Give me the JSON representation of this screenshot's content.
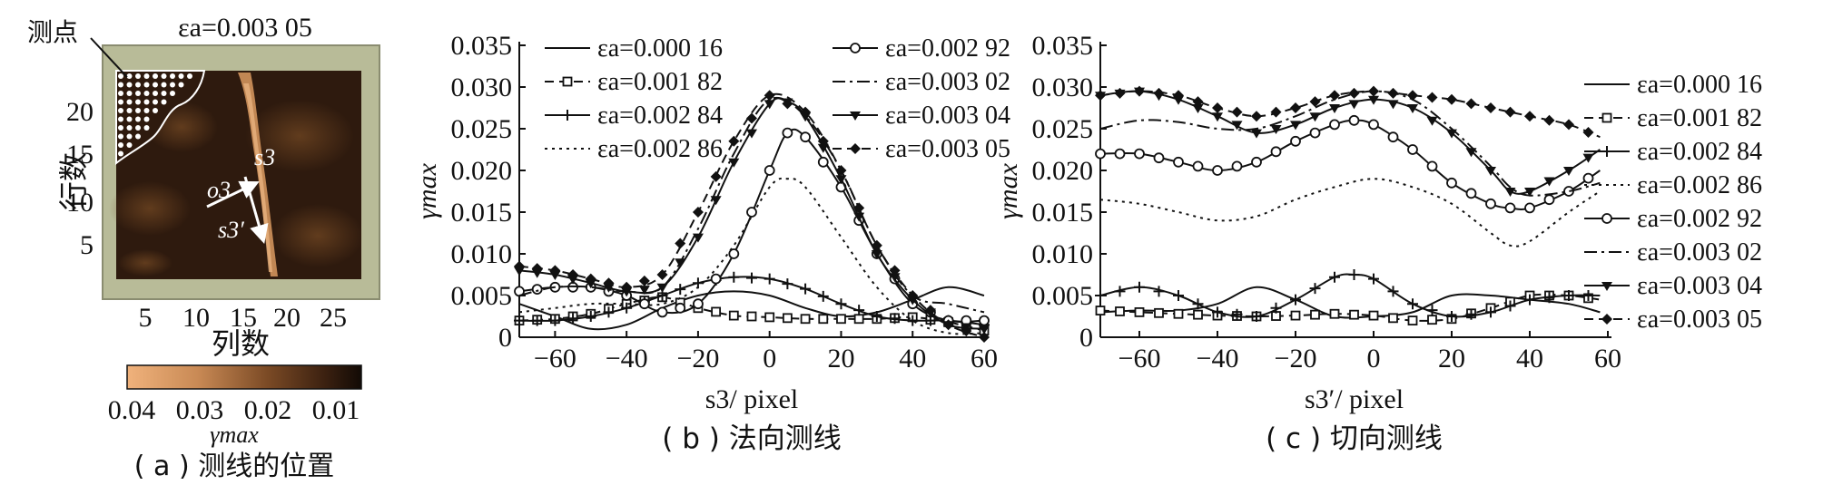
{
  "panel_a": {
    "title": "εa=0.003 05",
    "callout": "测点",
    "y_label": "行数",
    "x_label": "列数",
    "y_ticks": [
      "5",
      "10",
      "15",
      "20"
    ],
    "x_ticks": [
      "5",
      "10",
      "15",
      "20",
      "25"
    ],
    "o_label": "o3",
    "s_label": "s3",
    "sp_label": "s3′",
    "colorbar_ticks": [
      "0.04",
      "0.03",
      "0.02",
      "0.01"
    ],
    "colorbar_label": "γmax",
    "caption": "( a ) 测线的位置",
    "colors": {
      "frame": "#b8bb98",
      "field_dark": "#2e1a0e",
      "field_mid": "#5a3618",
      "band": "#c98d58",
      "band_light": "#e7b27e"
    }
  },
  "chart_data": [
    {
      "id": "b",
      "type": "line",
      "caption": "( b ) 法向测线",
      "xlabel": "s3/ pixel",
      "ylabel": "γmax",
      "xlim": [
        -70,
        60
      ],
      "ylim": [
        0,
        0.035
      ],
      "xticks": [
        "-60",
        "-40",
        "-20",
        "0",
        "20",
        "40",
        "60"
      ],
      "yticks": [
        "0",
        "0.005",
        "0.010",
        "0.015",
        "0.020",
        "0.025",
        "0.030",
        "0.035"
      ],
      "grid": false,
      "legend_position": "top",
      "series": [
        {
          "name": "εa=0.000 16",
          "style": "solid",
          "marker": "none",
          "points": [
            [
              -70,
              0.004
            ],
            [
              -60,
              0.0025
            ],
            [
              -50,
              0.001
            ],
            [
              -40,
              0.0015
            ],
            [
              -30,
              0.0035
            ],
            [
              -20,
              0.005
            ],
            [
              -10,
              0.0055
            ],
            [
              0,
              0.005
            ],
            [
              10,
              0.0035
            ],
            [
              20,
              0.0025
            ],
            [
              30,
              0.003
            ],
            [
              40,
              0.0045
            ],
            [
              50,
              0.006
            ],
            [
              60,
              0.005
            ]
          ]
        },
        {
          "name": "εa=0.001 82",
          "style": "dashed",
          "marker": "square",
          "points": [
            [
              -70,
              0.002
            ],
            [
              -60,
              0.0022
            ],
            [
              -50,
              0.0028
            ],
            [
              -40,
              0.004
            ],
            [
              -30,
              0.0048
            ],
            [
              -20,
              0.0035
            ],
            [
              -10,
              0.0026
            ],
            [
              0,
              0.0024
            ],
            [
              10,
              0.0022
            ],
            [
              20,
              0.0022
            ],
            [
              30,
              0.0022
            ],
            [
              40,
              0.0024
            ],
            [
              50,
              0.0018
            ],
            [
              60,
              0.0008
            ]
          ]
        },
        {
          "name": "εa=0.002 84",
          "style": "solid",
          "marker": "plus",
          "points": [
            [
              -70,
              0.002
            ],
            [
              -60,
              0.002
            ],
            [
              -50,
              0.0025
            ],
            [
              -40,
              0.0035
            ],
            [
              -30,
              0.005
            ],
            [
              -20,
              0.0065
            ],
            [
              -10,
              0.0072
            ],
            [
              0,
              0.007
            ],
            [
              10,
              0.0058
            ],
            [
              20,
              0.004
            ],
            [
              30,
              0.0025
            ],
            [
              40,
              0.002
            ],
            [
              50,
              0.002
            ],
            [
              60,
              0.0015
            ]
          ]
        },
        {
          "name": "εa=0.002 86",
          "style": "dotted",
          "marker": "none",
          "points": [
            [
              -70,
              0.003
            ],
            [
              -60,
              0.0035
            ],
            [
              -50,
              0.004
            ],
            [
              -40,
              0.004
            ],
            [
              -30,
              0.004
            ],
            [
              -20,
              0.006
            ],
            [
              -10,
              0.011
            ],
            [
              0,
              0.018
            ],
            [
              5,
              0.019
            ],
            [
              10,
              0.018
            ],
            [
              20,
              0.012
            ],
            [
              30,
              0.006
            ],
            [
              40,
              0.002
            ],
            [
              50,
              0.0005
            ],
            [
              60,
              0.0005
            ]
          ]
        },
        {
          "name": "εa=0.002 92",
          "style": "solid",
          "marker": "circle",
          "points": [
            [
              -70,
              0.0055
            ],
            [
              -60,
              0.006
            ],
            [
              -50,
              0.006
            ],
            [
              -40,
              0.005
            ],
            [
              -30,
              0.003
            ],
            [
              -20,
              0.004
            ],
            [
              -10,
              0.01
            ],
            [
              0,
              0.02
            ],
            [
              5,
              0.0245
            ],
            [
              10,
              0.024
            ],
            [
              20,
              0.018
            ],
            [
              30,
              0.01
            ],
            [
              40,
              0.004
            ],
            [
              50,
              0.002
            ],
            [
              60,
              0.002
            ]
          ]
        },
        {
          "name": "εa=0.003 02",
          "style": "dashdot",
          "marker": "none",
          "points": [
            [
              -70,
              0.005
            ],
            [
              -60,
              0.006
            ],
            [
              -50,
              0.006
            ],
            [
              -40,
              0.0055
            ],
            [
              -30,
              0.006
            ],
            [
              -20,
              0.013
            ],
            [
              -10,
              0.022
            ],
            [
              0,
              0.0285
            ],
            [
              10,
              0.0265
            ],
            [
              20,
              0.02
            ],
            [
              30,
              0.011
            ],
            [
              40,
              0.005
            ],
            [
              50,
              0.004
            ],
            [
              60,
              0.003
            ]
          ]
        },
        {
          "name": "εa=0.003 04",
          "style": "solid",
          "marker": "triangle",
          "points": [
            [
              -70,
              0.008
            ],
            [
              -60,
              0.0075
            ],
            [
              -50,
              0.0065
            ],
            [
              -40,
              0.0055
            ],
            [
              -30,
              0.006
            ],
            [
              -20,
              0.012
            ],
            [
              -10,
              0.021
            ],
            [
              0,
              0.028
            ],
            [
              5,
              0.0282
            ],
            [
              10,
              0.0265
            ],
            [
              20,
              0.019
            ],
            [
              30,
              0.01
            ],
            [
              40,
              0.0045
            ],
            [
              50,
              0.0015
            ],
            [
              60,
              0.001
            ]
          ]
        },
        {
          "name": "εa=0.003 05",
          "style": "dashed",
          "marker": "diamond",
          "points": [
            [
              -70,
              0.0085
            ],
            [
              -60,
              0.008
            ],
            [
              -50,
              0.007
            ],
            [
              -40,
              0.006
            ],
            [
              -30,
              0.0075
            ],
            [
              -20,
              0.015
            ],
            [
              -10,
              0.0235
            ],
            [
              0,
              0.029
            ],
            [
              10,
              0.027
            ],
            [
              20,
              0.02
            ],
            [
              30,
              0.011
            ],
            [
              40,
              0.005
            ],
            [
              50,
              0.0015
            ],
            [
              60,
              0.0
            ]
          ]
        }
      ]
    },
    {
      "id": "c",
      "type": "line",
      "caption": "( c ) 切向测线",
      "xlabel": "s3′/ pixel",
      "ylabel": "γmax",
      "xlim": [
        -70,
        60
      ],
      "ylim": [
        0,
        0.035
      ],
      "xticks": [
        "-60",
        "-40",
        "-20",
        "0",
        "20",
        "40",
        "60"
      ],
      "yticks": [
        "0",
        "0.005",
        "0.010",
        "0.015",
        "0.020",
        "0.025",
        "0.030",
        "0.035"
      ],
      "grid": false,
      "legend_position": "right",
      "series": [
        {
          "name": "εa=0.000 16",
          "style": "solid",
          "marker": "none",
          "points": [
            [
              -70,
              0.003
            ],
            [
              -60,
              0.0032
            ],
            [
              -50,
              0.0032
            ],
            [
              -40,
              0.004
            ],
            [
              -30,
              0.006
            ],
            [
              -20,
              0.0045
            ],
            [
              -10,
              0.0025
            ],
            [
              0,
              0.0025
            ],
            [
              10,
              0.003
            ],
            [
              20,
              0.005
            ],
            [
              30,
              0.005
            ],
            [
              40,
              0.0045
            ],
            [
              50,
              0.004
            ],
            [
              58,
              0.003
            ]
          ]
        },
        {
          "name": "εa=0.001 82",
          "style": "dashed",
          "marker": "square",
          "points": [
            [
              -70,
              0.0032
            ],
            [
              -60,
              0.003
            ],
            [
              -50,
              0.0028
            ],
            [
              -40,
              0.0026
            ],
            [
              -30,
              0.0025
            ],
            [
              -20,
              0.0026
            ],
            [
              -10,
              0.0028
            ],
            [
              0,
              0.0026
            ],
            [
              10,
              0.002
            ],
            [
              20,
              0.0022
            ],
            [
              30,
              0.0035
            ],
            [
              40,
              0.005
            ],
            [
              50,
              0.005
            ],
            [
              58,
              0.0045
            ]
          ]
        },
        {
          "name": "εa=0.002 84",
          "style": "solid",
          "marker": "plus",
          "points": [
            [
              -70,
              0.005
            ],
            [
              -60,
              0.006
            ],
            [
              -50,
              0.005
            ],
            [
              -40,
              0.003
            ],
            [
              -30,
              0.0025
            ],
            [
              -20,
              0.0045
            ],
            [
              -10,
              0.0072
            ],
            [
              -5,
              0.0075
            ],
            [
              0,
              0.007
            ],
            [
              10,
              0.004
            ],
            [
              20,
              0.0025
            ],
            [
              30,
              0.003
            ],
            [
              40,
              0.0045
            ],
            [
              50,
              0.005
            ],
            [
              58,
              0.005
            ]
          ]
        },
        {
          "name": "εa=0.002 86",
          "style": "dotted",
          "marker": "none",
          "points": [
            [
              -70,
              0.0165
            ],
            [
              -60,
              0.016
            ],
            [
              -50,
              0.015
            ],
            [
              -40,
              0.014
            ],
            [
              -30,
              0.0145
            ],
            [
              -20,
              0.0165
            ],
            [
              -10,
              0.018
            ],
            [
              0,
              0.019
            ],
            [
              10,
              0.018
            ],
            [
              20,
              0.016
            ],
            [
              30,
              0.0125
            ],
            [
              35,
              0.011
            ],
            [
              40,
              0.0115
            ],
            [
              50,
              0.015
            ],
            [
              58,
              0.0175
            ]
          ]
        },
        {
          "name": "εa=0.002 92",
          "style": "solid",
          "marker": "circle",
          "points": [
            [
              -70,
              0.022
            ],
            [
              -60,
              0.022
            ],
            [
              -50,
              0.021
            ],
            [
              -40,
              0.02
            ],
            [
              -30,
              0.021
            ],
            [
              -20,
              0.0235
            ],
            [
              -10,
              0.0255
            ],
            [
              -5,
              0.026
            ],
            [
              0,
              0.0255
            ],
            [
              10,
              0.0225
            ],
            [
              20,
              0.0185
            ],
            [
              30,
              0.016
            ],
            [
              35,
              0.0155
            ],
            [
              40,
              0.0155
            ],
            [
              50,
              0.0175
            ],
            [
              58,
              0.02
            ]
          ]
        },
        {
          "name": "εa=0.003 02",
          "style": "dashdot",
          "marker": "none",
          "points": [
            [
              -70,
              0.025
            ],
            [
              -60,
              0.026
            ],
            [
              -50,
              0.0258
            ],
            [
              -40,
              0.025
            ],
            [
              -30,
              0.025
            ],
            [
              -20,
              0.0265
            ],
            [
              -10,
              0.0285
            ],
            [
              0,
              0.0295
            ],
            [
              10,
              0.0285
            ],
            [
              20,
              0.025
            ],
            [
              30,
              0.0205
            ],
            [
              35,
              0.018
            ],
            [
              40,
              0.017
            ],
            [
              50,
              0.0175
            ],
            [
              58,
              0.0185
            ]
          ]
        },
        {
          "name": "εa=0.003 04",
          "style": "solid",
          "marker": "triangle",
          "points": [
            [
              -70,
              0.029
            ],
            [
              -60,
              0.0295
            ],
            [
              -50,
              0.0285
            ],
            [
              -40,
              0.0265
            ],
            [
              -30,
              0.0245
            ],
            [
              -20,
              0.0255
            ],
            [
              -10,
              0.0275
            ],
            [
              0,
              0.0285
            ],
            [
              10,
              0.0275
            ],
            [
              20,
              0.0245
            ],
            [
              30,
              0.02
            ],
            [
              35,
              0.0175
            ],
            [
              40,
              0.0175
            ],
            [
              50,
              0.02
            ],
            [
              58,
              0.0225
            ]
          ]
        },
        {
          "name": "εa=0.003 05",
          "style": "dashed",
          "marker": "diamond",
          "points": [
            [
              -70,
              0.029
            ],
            [
              -60,
              0.0295
            ],
            [
              -50,
              0.029
            ],
            [
              -40,
              0.0275
            ],
            [
              -30,
              0.0265
            ],
            [
              -20,
              0.0275
            ],
            [
              -10,
              0.029
            ],
            [
              0,
              0.0295
            ],
            [
              10,
              0.029
            ],
            [
              20,
              0.0285
            ],
            [
              30,
              0.0275
            ],
            [
              40,
              0.0265
            ],
            [
              50,
              0.0255
            ],
            [
              58,
              0.024
            ]
          ]
        }
      ]
    }
  ]
}
